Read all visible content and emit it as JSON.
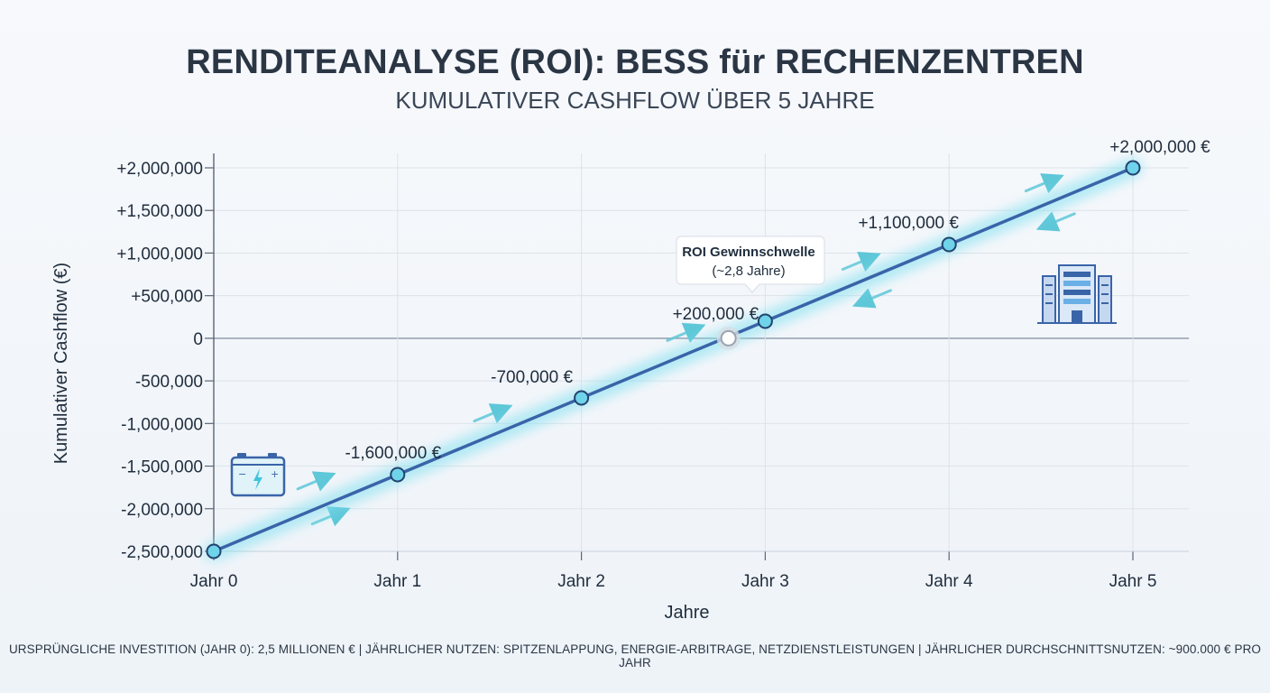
{
  "header": {
    "title": "RENDITEANALYSE (ROI): BESS für RECHENZENTREN",
    "subtitle": "KUMULATIVER CASHFLOW ÜBER 5 JAHRE"
  },
  "footer": {
    "note": "URSPRÜNGLICHE INVESTITION (JAHR 0): 2,5 MILLIONEN € | JÄHRLICHER NUTZEN: SPITZENLAPPUNG, ENERGIE-ARBITRAGE, NETZDIENSTLEISTUNGEN | JÄHRLICHER DURCHSCHNITTSNUTZEN: ~900.000 € PRO JAHR"
  },
  "chart_data": {
    "type": "line",
    "x": [
      0,
      1,
      2,
      3,
      4,
      5
    ],
    "categories": [
      "Jahr 0",
      "Jahr 1",
      "Jahr 2",
      "Jahr 3",
      "Jahr 4",
      "Jahr 5"
    ],
    "values": [
      -2500000,
      -1600000,
      -700000,
      200000,
      1100000,
      2000000
    ],
    "data_labels": [
      "",
      "-1,600,000 €",
      "-700,000 €",
      "+200,000 €",
      "+1,100,000 €",
      "+2,000,000 €"
    ],
    "xlabel": "Jahre",
    "ylabel": "Kumulativer Cashflow (€)",
    "ylim": [
      -2500000,
      2000000
    ],
    "yticks": [
      -2500000,
      -2000000,
      -1500000,
      -1000000,
      -500000,
      0,
      500000,
      1000000,
      1500000,
      2000000
    ],
    "ytick_labels": [
      "-2,500,000",
      "-2,000,000",
      "-1,500,000",
      "-1,000,000",
      "-500,000",
      "0",
      "+500,000",
      "+1,000,000",
      "+1,500,000",
      "+2,000,000"
    ],
    "grid": true,
    "line_color": "#3a64a8",
    "glow_color": "#7fe0f0",
    "marker_color": "#6fd3ea",
    "breakeven": {
      "x": 2.8,
      "y": 0,
      "title": "ROI Gewinnschwelle",
      "subtitle": "(~2,8 Jahre)"
    },
    "icons": [
      "battery-icon",
      "data-center-building-icon"
    ]
  }
}
